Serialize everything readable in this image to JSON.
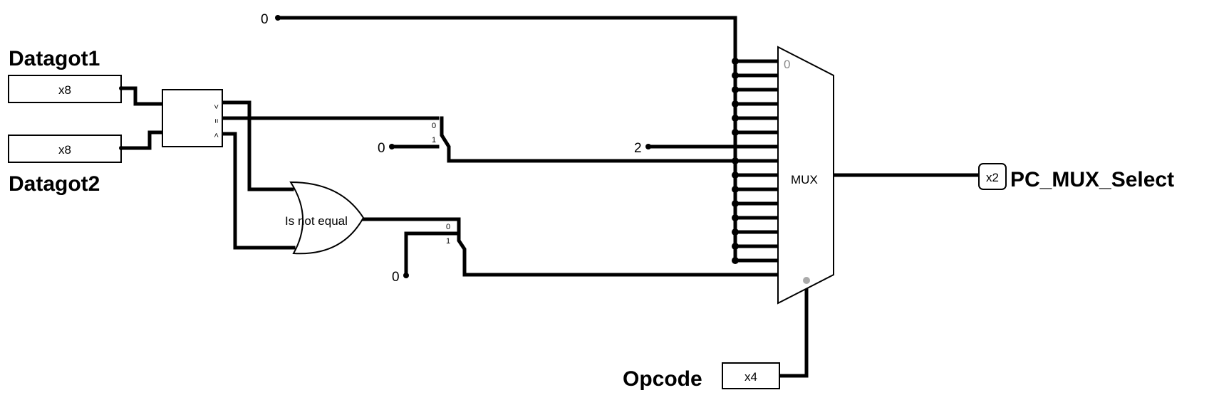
{
  "inputs": {
    "datagot1": {
      "name": "Datagot1",
      "width": "x8"
    },
    "datagot2": {
      "name": "Datagot2",
      "width": "x8"
    },
    "opcode": {
      "name": "Opcode",
      "width": "x4"
    }
  },
  "output": {
    "name": "PC_MUX_Select",
    "width": "x2"
  },
  "comparator": {
    "pins": [
      ">",
      "=",
      "<"
    ]
  },
  "or_gate": {
    "label": "Is not equal"
  },
  "mux": {
    "label": "MUX",
    "first_input": "0"
  },
  "splitter_labels": {
    "a0": "0",
    "a1": "1",
    "b0": "0",
    "b1": "1"
  },
  "constants": {
    "top": "0",
    "mid_mux": "2",
    "splitter_a": "0",
    "splitter_b": "0"
  }
}
